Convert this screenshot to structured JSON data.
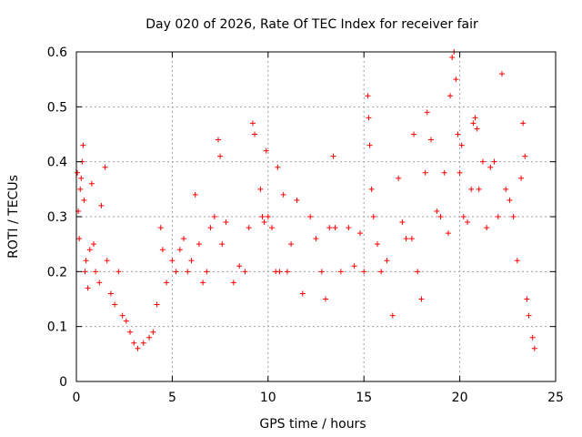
{
  "chart_data": {
    "type": "scatter",
    "title": "Day 020 of 2026, Rate Of TEC Index for receiver fair",
    "xlabel": "GPS time / hours",
    "ylabel": "ROTI / TECUs",
    "xlim": [
      0,
      25
    ],
    "ylim": [
      0,
      0.6
    ],
    "xticks": [
      "0",
      "5",
      "10",
      "15",
      "20",
      "25"
    ],
    "yticks": [
      "0",
      "0.1",
      "0.2",
      "0.3",
      "0.4",
      "0.5",
      "0.6"
    ],
    "grid": true,
    "marker": "+",
    "colors": {
      "points": "#ff0000",
      "grid": "#a0a0a0",
      "axes": "#000000"
    },
    "series": [
      {
        "points": [
          [
            0.05,
            0.38
          ],
          [
            0.1,
            0.31
          ],
          [
            0.15,
            0.26
          ],
          [
            0.2,
            0.35
          ],
          [
            0.25,
            0.37
          ],
          [
            0.3,
            0.4
          ],
          [
            0.35,
            0.43
          ],
          [
            0.4,
            0.33
          ],
          [
            0.45,
            0.2
          ],
          [
            0.5,
            0.22
          ],
          [
            0.6,
            0.17
          ],
          [
            0.7,
            0.24
          ],
          [
            0.8,
            0.36
          ],
          [
            0.9,
            0.25
          ],
          [
            1.0,
            0.2
          ],
          [
            1.2,
            0.18
          ],
          [
            1.3,
            0.32
          ],
          [
            1.5,
            0.39
          ],
          [
            1.6,
            0.22
          ],
          [
            1.8,
            0.16
          ],
          [
            2.0,
            0.14
          ],
          [
            2.2,
            0.2
          ],
          [
            2.4,
            0.12
          ],
          [
            2.6,
            0.11
          ],
          [
            2.8,
            0.09
          ],
          [
            3.0,
            0.07
          ],
          [
            3.2,
            0.06
          ],
          [
            3.5,
            0.07
          ],
          [
            3.8,
            0.08
          ],
          [
            4.0,
            0.09
          ],
          [
            4.2,
            0.14
          ],
          [
            4.4,
            0.28
          ],
          [
            4.5,
            0.24
          ],
          [
            4.7,
            0.18
          ],
          [
            5.0,
            0.22
          ],
          [
            5.2,
            0.2
          ],
          [
            5.4,
            0.24
          ],
          [
            5.6,
            0.26
          ],
          [
            5.8,
            0.2
          ],
          [
            6.0,
            0.22
          ],
          [
            6.2,
            0.34
          ],
          [
            6.4,
            0.25
          ],
          [
            6.6,
            0.18
          ],
          [
            6.8,
            0.2
          ],
          [
            7.0,
            0.28
          ],
          [
            7.2,
            0.3
          ],
          [
            7.4,
            0.44
          ],
          [
            7.5,
            0.41
          ],
          [
            7.6,
            0.25
          ],
          [
            7.8,
            0.29
          ],
          [
            8.2,
            0.18
          ],
          [
            8.5,
            0.21
          ],
          [
            8.8,
            0.2
          ],
          [
            9.0,
            0.28
          ],
          [
            9.2,
            0.47
          ],
          [
            9.3,
            0.45
          ],
          [
            9.6,
            0.35
          ],
          [
            9.7,
            0.3
          ],
          [
            9.8,
            0.29
          ],
          [
            9.9,
            0.42
          ],
          [
            10.0,
            0.3
          ],
          [
            10.2,
            0.28
          ],
          [
            10.4,
            0.2
          ],
          [
            10.5,
            0.39
          ],
          [
            10.6,
            0.2
          ],
          [
            10.8,
            0.34
          ],
          [
            11.0,
            0.2
          ],
          [
            11.2,
            0.25
          ],
          [
            11.5,
            0.33
          ],
          [
            11.8,
            0.16
          ],
          [
            12.2,
            0.3
          ],
          [
            12.5,
            0.26
          ],
          [
            12.8,
            0.2
          ],
          [
            13.0,
            0.15
          ],
          [
            13.2,
            0.28
          ],
          [
            13.4,
            0.41
          ],
          [
            13.5,
            0.28
          ],
          [
            13.8,
            0.2
          ],
          [
            14.2,
            0.28
          ],
          [
            14.5,
            0.21
          ],
          [
            14.8,
            0.27
          ],
          [
            15.0,
            0.2
          ],
          [
            15.2,
            0.52
          ],
          [
            15.25,
            0.48
          ],
          [
            15.3,
            0.43
          ],
          [
            15.4,
            0.35
          ],
          [
            15.5,
            0.3
          ],
          [
            15.7,
            0.25
          ],
          [
            15.9,
            0.2
          ],
          [
            16.2,
            0.22
          ],
          [
            16.5,
            0.12
          ],
          [
            16.8,
            0.37
          ],
          [
            17.0,
            0.29
          ],
          [
            17.2,
            0.26
          ],
          [
            17.5,
            0.26
          ],
          [
            17.6,
            0.45
          ],
          [
            17.8,
            0.2
          ],
          [
            18.0,
            0.15
          ],
          [
            18.2,
            0.38
          ],
          [
            18.3,
            0.49
          ],
          [
            18.5,
            0.44
          ],
          [
            18.8,
            0.31
          ],
          [
            19.0,
            0.3
          ],
          [
            19.2,
            0.38
          ],
          [
            19.4,
            0.27
          ],
          [
            19.5,
            0.52
          ],
          [
            19.6,
            0.59
          ],
          [
            19.7,
            0.6
          ],
          [
            19.8,
            0.55
          ],
          [
            19.9,
            0.45
          ],
          [
            20.0,
            0.38
          ],
          [
            20.1,
            0.43
          ],
          [
            20.2,
            0.3
          ],
          [
            20.4,
            0.29
          ],
          [
            20.6,
            0.35
          ],
          [
            20.7,
            0.47
          ],
          [
            20.8,
            0.48
          ],
          [
            20.9,
            0.46
          ],
          [
            21.0,
            0.35
          ],
          [
            21.2,
            0.4
          ],
          [
            21.4,
            0.28
          ],
          [
            21.6,
            0.39
          ],
          [
            21.8,
            0.4
          ],
          [
            22.0,
            0.3
          ],
          [
            22.2,
            0.56
          ],
          [
            22.4,
            0.35
          ],
          [
            22.6,
            0.33
          ],
          [
            22.8,
            0.3
          ],
          [
            23.0,
            0.22
          ],
          [
            23.2,
            0.37
          ],
          [
            23.3,
            0.47
          ],
          [
            23.4,
            0.41
          ],
          [
            23.5,
            0.15
          ],
          [
            23.6,
            0.12
          ],
          [
            23.8,
            0.08
          ],
          [
            23.9,
            0.06
          ]
        ]
      }
    ]
  }
}
